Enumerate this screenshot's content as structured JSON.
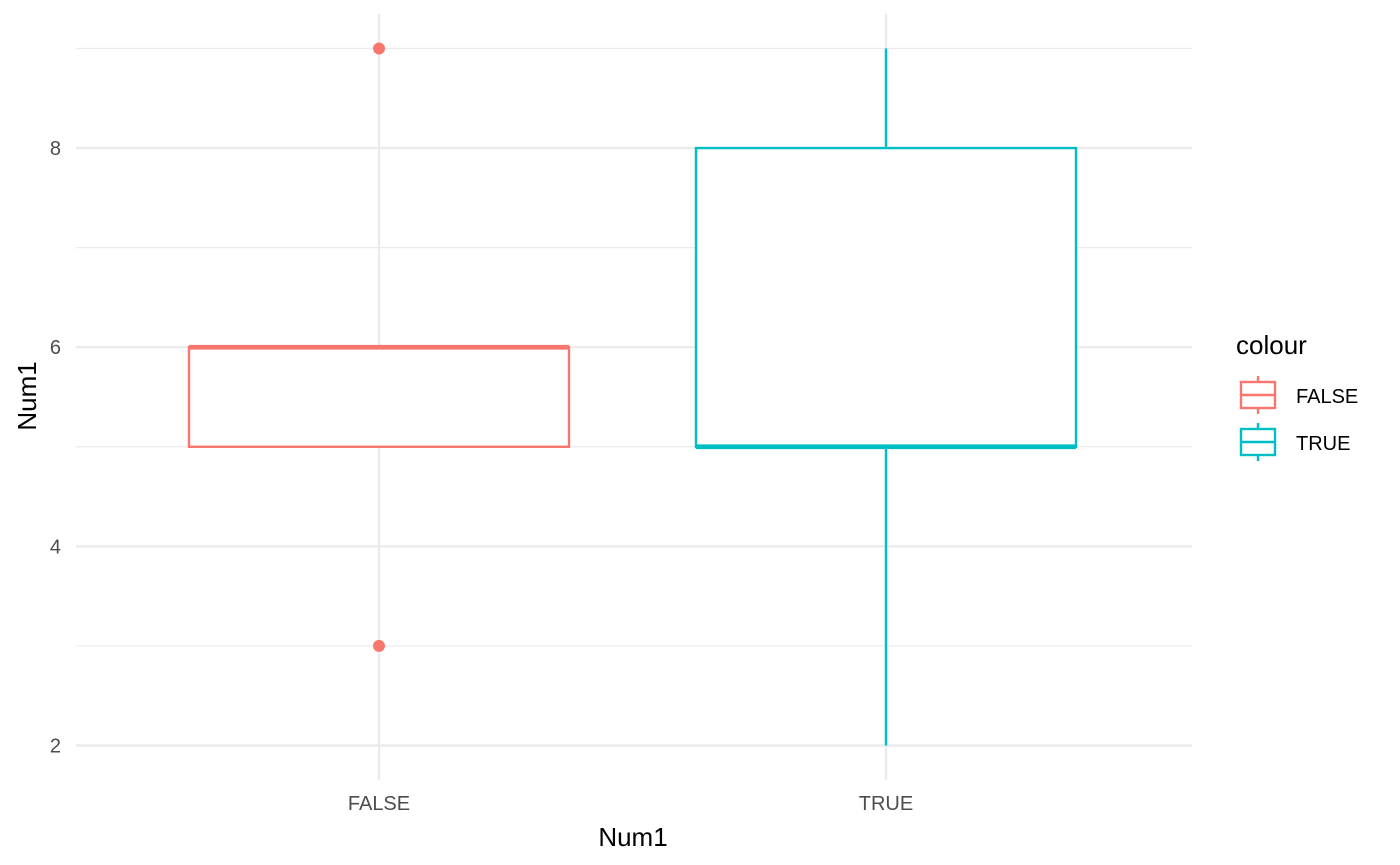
{
  "chart_data": {
    "type": "boxplot",
    "xlabel": "Num1",
    "ylabel": "Num1",
    "categories": [
      "FALSE",
      "TRUE"
    ],
    "ylim": [
      1.94,
      9.35
    ],
    "yticks": [
      2,
      4,
      6,
      8
    ],
    "grid": true,
    "legend_placement": "right",
    "legend": {
      "title": "colour",
      "entries": [
        "FALSE",
        "TRUE"
      ]
    },
    "boxes": [
      {
        "category": "FALSE",
        "colour": "#F8766D",
        "whisker_low": 5,
        "q1": 5,
        "median": 6,
        "q3": 6,
        "whisker_high": 6,
        "outliers": [
          9,
          3
        ]
      },
      {
        "category": "TRUE",
        "colour": "#00BFC4",
        "whisker_low": 2,
        "q1": 5,
        "median": 5,
        "q3": 8,
        "whisker_high": 9,
        "outliers": []
      }
    ]
  }
}
